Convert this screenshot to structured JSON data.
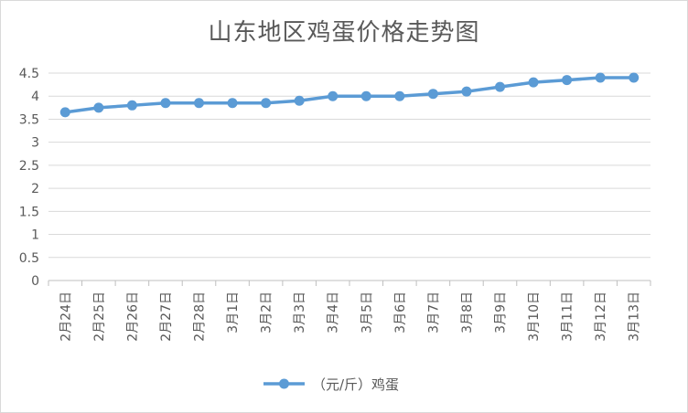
{
  "chart_data": {
    "type": "line",
    "title": "山东地区鸡蛋价格走势图",
    "categories": [
      "2月24日",
      "2月25日",
      "2月26日",
      "2月27日",
      "2月28日",
      "3月1日",
      "3月2日",
      "3月3日",
      "3月4日",
      "3月5日",
      "3月6日",
      "3月7日",
      "3月8日",
      "3月9日",
      "3月10日",
      "3月11日",
      "3月12日",
      "3月13日"
    ],
    "series": [
      {
        "name": "（元/斤）鸡蛋",
        "color": "#5b9bd5",
        "values": [
          3.65,
          3.75,
          3.8,
          3.85,
          3.85,
          3.85,
          3.85,
          3.9,
          4.0,
          4.0,
          4.0,
          4.05,
          4.1,
          4.2,
          4.3,
          4.35,
          4.4,
          4.4
        ]
      }
    ],
    "ylim": [
      0,
      4.5
    ],
    "yticks": [
      "0",
      "0.5",
      "1",
      "1.5",
      "2",
      "2.5",
      "3",
      "3.5",
      "4",
      "4.5"
    ],
    "grid": true,
    "legend": "bottom"
  }
}
